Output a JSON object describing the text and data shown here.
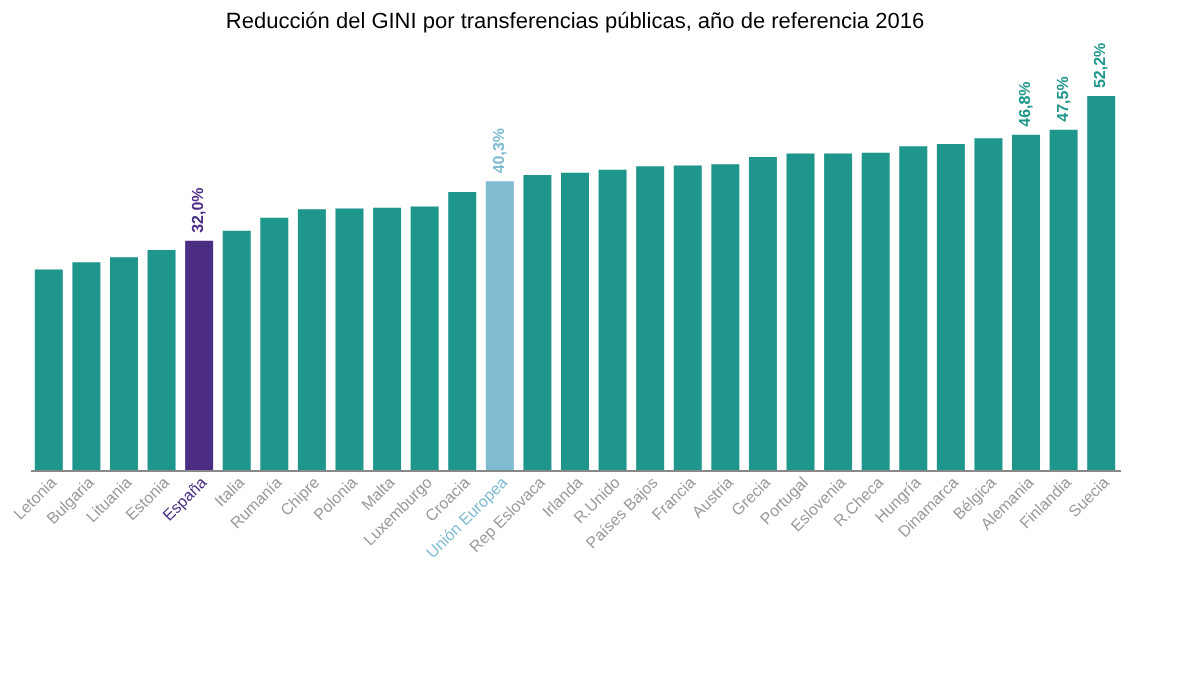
{
  "chart_data": {
    "type": "bar",
    "title": "Reducción del GINI por transferencias públicas, año de referencia 2016",
    "categories": [
      "Letonia",
      "Bulgaria",
      "Lituania",
      "Estonia",
      "España",
      "Italia",
      "Rumanía",
      "Chipre",
      "Polonia",
      "Malta",
      "Luxemburgo",
      "Croacia",
      "Unión Europea",
      "Rep Eslovaca",
      "Irlanda",
      "R.Unido",
      "Países Bajos",
      "Francia",
      "Austria",
      "Grecia",
      "Portugal",
      "Eslovenia",
      "R.Checa",
      "Hungría",
      "Dinamarca",
      "Bélgica",
      "Alemania",
      "Finlandia",
      "Suecia"
    ],
    "values": [
      28.0,
      29.0,
      29.7,
      30.7,
      32.0,
      33.4,
      35.2,
      36.4,
      36.5,
      36.6,
      36.8,
      38.8,
      40.3,
      41.2,
      41.5,
      41.9,
      42.4,
      42.5,
      42.7,
      43.7,
      44.2,
      44.2,
      44.3,
      45.2,
      45.5,
      46.3,
      46.8,
      47.5,
      52.2
    ],
    "colors": [
      "#1f968b",
      "#1f968b",
      "#1f968b",
      "#1f968b",
      "#4b2e83",
      "#1f968b",
      "#1f968b",
      "#1f968b",
      "#1f968b",
      "#1f968b",
      "#1f968b",
      "#1f968b",
      "#7fbcd2",
      "#1f968b",
      "#1f968b",
      "#1f968b",
      "#1f968b",
      "#1f968b",
      "#1f968b",
      "#1f968b",
      "#1f968b",
      "#1f968b",
      "#1f968b",
      "#1f968b",
      "#1f968b",
      "#1f968b",
      "#1f968b",
      "#1f968b",
      "#1f968b"
    ],
    "value_labels": [
      null,
      null,
      null,
      null,
      "32,0%",
      null,
      null,
      null,
      null,
      null,
      null,
      null,
      "40,3%",
      null,
      null,
      null,
      null,
      null,
      null,
      null,
      null,
      null,
      null,
      null,
      null,
      null,
      "46,8%",
      "47,5%",
      "52,2%"
    ],
    "grid": false
  }
}
